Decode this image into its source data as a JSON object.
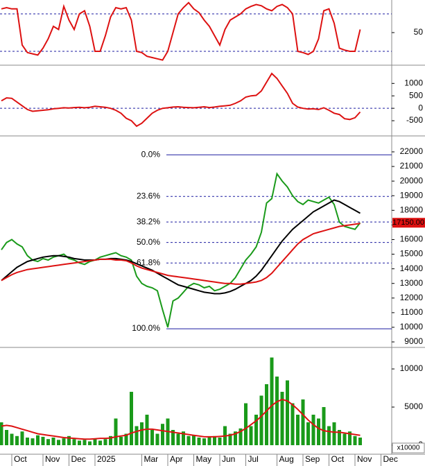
{
  "chart_data": [
    {
      "type": "line",
      "ylim": [
        0,
        100
      ],
      "yticks": [
        50
      ],
      "guides": [
        80,
        20
      ],
      "series": [
        {
          "color": "#dd1111",
          "values": [
            88,
            90,
            88,
            88,
            30,
            18,
            16,
            14,
            25,
            40,
            60,
            55,
            92,
            70,
            55,
            80,
            85,
            60,
            20,
            20,
            45,
            75,
            90,
            88,
            90,
            70,
            20,
            18,
            12,
            10,
            8,
            6,
            20,
            50,
            80,
            90,
            98,
            88,
            82,
            70,
            60,
            45,
            30,
            55,
            70,
            75,
            80,
            88,
            92,
            95,
            93,
            88,
            85,
            92,
            95,
            90,
            80,
            20,
            18,
            15,
            20,
            40,
            85,
            88,
            65,
            25,
            22,
            20,
            20,
            55,
            null,
            null,
            null,
            null
          ]
        }
      ]
    },
    {
      "type": "line",
      "ylim": [
        -1000,
        1650
      ],
      "yticks": [
        -500,
        0,
        500,
        1000
      ],
      "guides": [
        0
      ],
      "series": [
        {
          "color": "#dd1111",
          "values": [
            300,
            420,
            400,
            250,
            100,
            -50,
            -120,
            -100,
            -80,
            -60,
            -20,
            0,
            20,
            10,
            30,
            40,
            20,
            40,
            80,
            60,
            40,
            0,
            -80,
            -200,
            -400,
            -500,
            -720,
            -600,
            -400,
            -200,
            -80,
            0,
            20,
            50,
            60,
            40,
            30,
            20,
            40,
            60,
            30,
            50,
            80,
            100,
            120,
            200,
            300,
            450,
            500,
            520,
            700,
            1050,
            1400,
            1200,
            900,
            600,
            200,
            50,
            0,
            -30,
            -20,
            -50,
            20,
            -80,
            -200,
            -250,
            -420,
            -450,
            -380,
            -150,
            null,
            null,
            null,
            null
          ]
        }
      ]
    },
    {
      "type": "line",
      "ylim": [
        8670,
        22900
      ],
      "yticks": [
        9000,
        10000,
        11000,
        12000,
        13000,
        14000,
        15000,
        16000,
        17000,
        18000,
        19000,
        20000,
        21000,
        22000
      ],
      "levels": [
        {
          "value": 21800,
          "label": "0.0%"
        },
        {
          "value": 18950,
          "label": "23.6%"
        },
        {
          "value": 17200,
          "label": "38.2%"
        },
        {
          "value": 15800,
          "label": "50.0%"
        },
        {
          "value": 14400,
          "label": "61.8%"
        },
        {
          "value": 9900,
          "label": "100.0%"
        }
      ],
      "last_price": {
        "value": 17150,
        "label": "17150.00"
      },
      "series": [
        {
          "color": "#1a9a1a",
          "values": [
            15300,
            15800,
            16000,
            15700,
            15500,
            14900,
            14600,
            14500,
            14700,
            14600,
            14800,
            14900,
            15000,
            14700,
            14600,
            14400,
            14300,
            14500,
            14600,
            14800,
            14900,
            15000,
            15100,
            14900,
            14800,
            14600,
            13500,
            13000,
            12800,
            12700,
            12500,
            11200,
            10000,
            11800,
            12000,
            12400,
            12800,
            13000,
            12900,
            12700,
            12800,
            12500,
            12600,
            12800,
            13000,
            13400,
            14000,
            14600,
            15000,
            15500,
            16500,
            18500,
            18800,
            20500,
            20000,
            19600,
            19000,
            18600,
            18400,
            18700,
            18600,
            18500,
            18700,
            18900,
            18400,
            17200,
            16900,
            16800,
            16700,
            17150,
            null,
            null,
            null,
            null
          ]
        },
        {
          "color": "#000000",
          "values": [
            13200,
            13500,
            13800,
            14100,
            14300,
            14500,
            14600,
            14700,
            14800,
            14850,
            14900,
            14900,
            14850,
            14800,
            14700,
            14650,
            14600,
            14600,
            14600,
            14650,
            14650,
            14700,
            14700,
            14650,
            14600,
            14500,
            14350,
            14200,
            14050,
            13900,
            13700,
            13500,
            13300,
            13100,
            12900,
            12800,
            12700,
            12600,
            12500,
            12400,
            12350,
            12300,
            12300,
            12350,
            12450,
            12600,
            12800,
            13000,
            13200,
            13500,
            13900,
            14400,
            14900,
            15400,
            15900,
            16300,
            16700,
            17000,
            17300,
            17600,
            17900,
            18100,
            18300,
            18500,
            18700,
            18600,
            18400,
            18200,
            18000,
            17800,
            null,
            null,
            null,
            null
          ]
        },
        {
          "color": "#dd1111",
          "values": [
            13200,
            13400,
            13600,
            13750,
            13850,
            13950,
            14000,
            14050,
            14100,
            14150,
            14200,
            14250,
            14300,
            14350,
            14400,
            14450,
            14500,
            14550,
            14600,
            14650,
            14650,
            14650,
            14600,
            14600,
            14550,
            14400,
            14200,
            14050,
            13950,
            13850,
            13750,
            13650,
            13550,
            13500,
            13450,
            13400,
            13350,
            13300,
            13250,
            13200,
            13150,
            13100,
            13050,
            13000,
            13000,
            12950,
            12950,
            13000,
            13050,
            13100,
            13200,
            13400,
            13700,
            14100,
            14500,
            14900,
            15300,
            15700,
            16000,
            16200,
            16400,
            16500,
            16600,
            16700,
            16800,
            16900,
            16950,
            17000,
            17050,
            17100,
            null,
            null,
            null,
            null
          ]
        }
      ]
    },
    {
      "type": "bar",
      "ylim": [
        0,
        12640
      ],
      "yticks": [
        0,
        5000,
        10000
      ],
      "scale_label": "x10000",
      "categories": [
        null,
        null,
        "Oct",
        null,
        null,
        null,
        null,
        null,
        "Nov",
        null,
        null,
        null,
        null,
        "Dec",
        null,
        null,
        null,
        null,
        "2025",
        null,
        null,
        null,
        null,
        null,
        null,
        null,
        null,
        "Mar",
        null,
        null,
        null,
        null,
        "Apr",
        null,
        null,
        null,
        null,
        "May",
        null,
        null,
        null,
        null,
        "Jun",
        null,
        null,
        null,
        null,
        "Jul",
        null,
        null,
        null,
        null,
        null,
        "Aug",
        null,
        null,
        null,
        null,
        "Sep",
        null,
        null,
        null,
        null,
        "Oct",
        null,
        null,
        null,
        null,
        "Nov",
        null,
        null,
        null,
        null,
        "Dec"
      ],
      "series": [
        {
          "type": "bar",
          "color": "#1a9a1a",
          "values": [
            3000,
            2000,
            1500,
            1200,
            1800,
            1000,
            900,
            1300,
            1100,
            800,
            1000,
            700,
            900,
            1200,
            800,
            600,
            700,
            500,
            900,
            600,
            800,
            1200,
            3500,
            1100,
            1500,
            7000,
            2500,
            3000,
            4000,
            2000,
            1500,
            2800,
            3500,
            2000,
            1500,
            1800,
            1200,
            1300,
            1000,
            900,
            1100,
            1200,
            1000,
            2500,
            1500,
            1800,
            2200,
            5500,
            2500,
            4000,
            6500,
            8000,
            11500,
            9000,
            7000,
            8500,
            5500,
            4000,
            6000,
            3000,
            4000,
            3500,
            5000,
            2500,
            3000,
            2000,
            1500,
            1800,
            1200,
            1000,
            null,
            null,
            null,
            null
          ]
        },
        {
          "type": "line",
          "color": "#dd1111",
          "values": [
            2500,
            2600,
            2500,
            2300,
            2100,
            1900,
            1700,
            1500,
            1400,
            1300,
            1200,
            1100,
            1000,
            950,
            900,
            850,
            800,
            800,
            850,
            900,
            900,
            950,
            1100,
            1200,
            1300,
            1600,
            1800,
            2000,
            2100,
            2100,
            2000,
            1900,
            1800,
            1700,
            1600,
            1500,
            1400,
            1300,
            1200,
            1100,
            1100,
            1100,
            1150,
            1200,
            1300,
            1500,
            1800,
            2200,
            2700,
            3200,
            3800,
            4500,
            5200,
            5700,
            6000,
            5800,
            5300,
            4700,
            4000,
            3300,
            2700,
            2200,
            1900,
            1800,
            1700,
            1700,
            1600,
            1500,
            1400,
            1300,
            null,
            null,
            null,
            null
          ]
        }
      ]
    }
  ]
}
